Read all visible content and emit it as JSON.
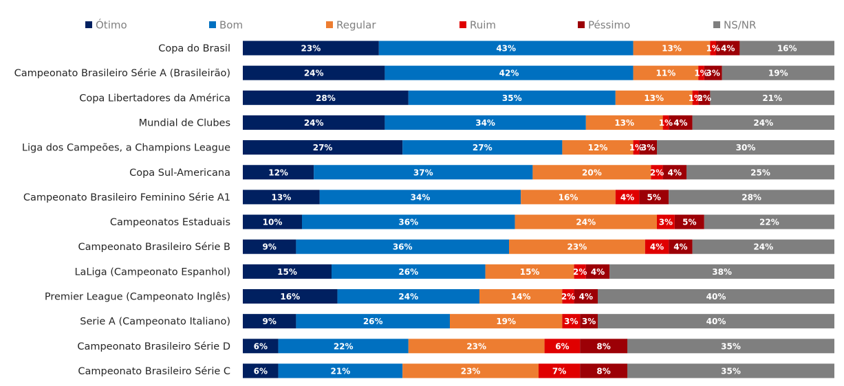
{
  "chart_data": {
    "type": "bar",
    "orientation": "horizontal",
    "stacked": true,
    "legend_position": "top",
    "grid": false,
    "xlim": [
      0,
      100
    ],
    "value_suffix": "%",
    "categories": [
      "Copa do Brasil",
      "Campeonato Brasileiro Série A (Brasileirão)",
      "Copa Libertadores da América",
      "Mundial de Clubes",
      "Liga dos Campeões, a Champions League",
      "Copa Sul-Americana",
      "Campeonato Brasileiro Feminino Série A1",
      "Campeonatos Estaduais",
      "Campeonato Brasileiro Série B",
      "LaLiga (Campeonato Espanhol)",
      "Premier League (Campeonato Inglês)",
      "Serie A (Campeonato Italiano)",
      "Campeonato Brasileiro Série D",
      "Campeonato Brasileiro Série C"
    ],
    "series": [
      {
        "name": "Ótimo",
        "color": "#002060",
        "values": [
          23,
          24,
          28,
          24,
          27,
          12,
          13,
          10,
          9,
          15,
          16,
          9,
          6,
          6
        ]
      },
      {
        "name": "Bom",
        "color": "#0070c0",
        "values": [
          43,
          42,
          35,
          34,
          27,
          37,
          34,
          36,
          36,
          26,
          24,
          26,
          22,
          21
        ]
      },
      {
        "name": "Regular",
        "color": "#ed7d31",
        "values": [
          13,
          11,
          13,
          13,
          12,
          20,
          16,
          24,
          23,
          15,
          14,
          19,
          23,
          23
        ]
      },
      {
        "name": "Ruim",
        "color": "#e00000",
        "values": [
          1,
          1,
          1,
          1,
          1,
          2,
          4,
          3,
          4,
          2,
          2,
          3,
          6,
          7
        ]
      },
      {
        "name": "Péssimo",
        "color": "#9c0006",
        "values": [
          4,
          3,
          2,
          4,
          3,
          4,
          5,
          5,
          4,
          4,
          4,
          3,
          8,
          8
        ]
      },
      {
        "name": "NS/NR",
        "color": "#7f7f7f",
        "values": [
          16,
          19,
          21,
          24,
          30,
          25,
          28,
          22,
          24,
          38,
          40,
          40,
          35,
          35
        ]
      }
    ]
  }
}
